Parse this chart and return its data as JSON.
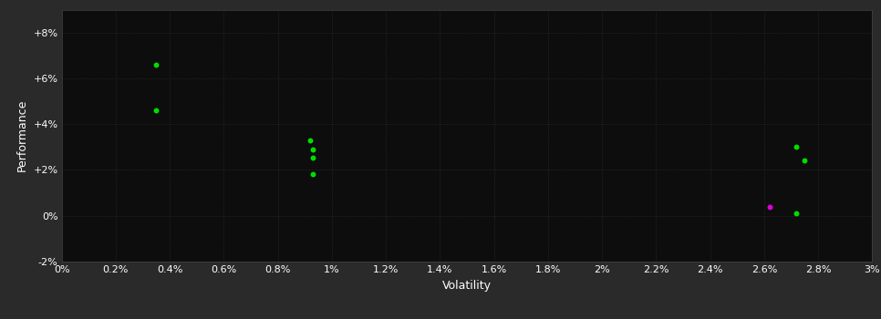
{
  "background_color": "#2a2a2a",
  "plot_bg_color": "#0d0d0d",
  "grid_color": "#333333",
  "axis_label_color": "#ffffff",
  "tick_label_color": "#ffffff",
  "xlabel": "Volatility",
  "ylabel": "Performance",
  "xlim": [
    0.0,
    0.03
  ],
  "ylim": [
    -0.02,
    0.09
  ],
  "xtick_vals": [
    0.0,
    0.002,
    0.004,
    0.006,
    0.008,
    0.01,
    0.012,
    0.014,
    0.016,
    0.018,
    0.02,
    0.022,
    0.024,
    0.026,
    0.028,
    0.03
  ],
  "ytick_vals": [
    -0.02,
    0.0,
    0.02,
    0.04,
    0.06,
    0.08
  ],
  "ytick_labels": [
    "-2%",
    "0%",
    "+2%",
    "+4%",
    "+6%",
    "+8%"
  ],
  "xtick_labels": [
    "0%",
    "0.2%",
    "0.4%",
    "0.6%",
    "0.8%",
    "1%",
    "1.2%",
    "1.4%",
    "1.6%",
    "1.8%",
    "2%",
    "2.2%",
    "2.4%",
    "2.6%",
    "2.8%",
    "3%"
  ],
  "points_green": [
    [
      0.0035,
      0.066
    ],
    [
      0.0035,
      0.046
    ],
    [
      0.0092,
      0.033
    ],
    [
      0.0093,
      0.029
    ],
    [
      0.0093,
      0.0255
    ],
    [
      0.0093,
      0.018
    ],
    [
      0.0272,
      0.001
    ],
    [
      0.0272,
      0.03
    ],
    [
      0.0275,
      0.024
    ]
  ],
  "points_magenta": [
    [
      0.0262,
      0.004
    ]
  ],
  "green_color": "#00dd00",
  "magenta_color": "#dd00dd",
  "marker_size": 18,
  "font_size_ticks": 8,
  "font_size_labels": 9
}
